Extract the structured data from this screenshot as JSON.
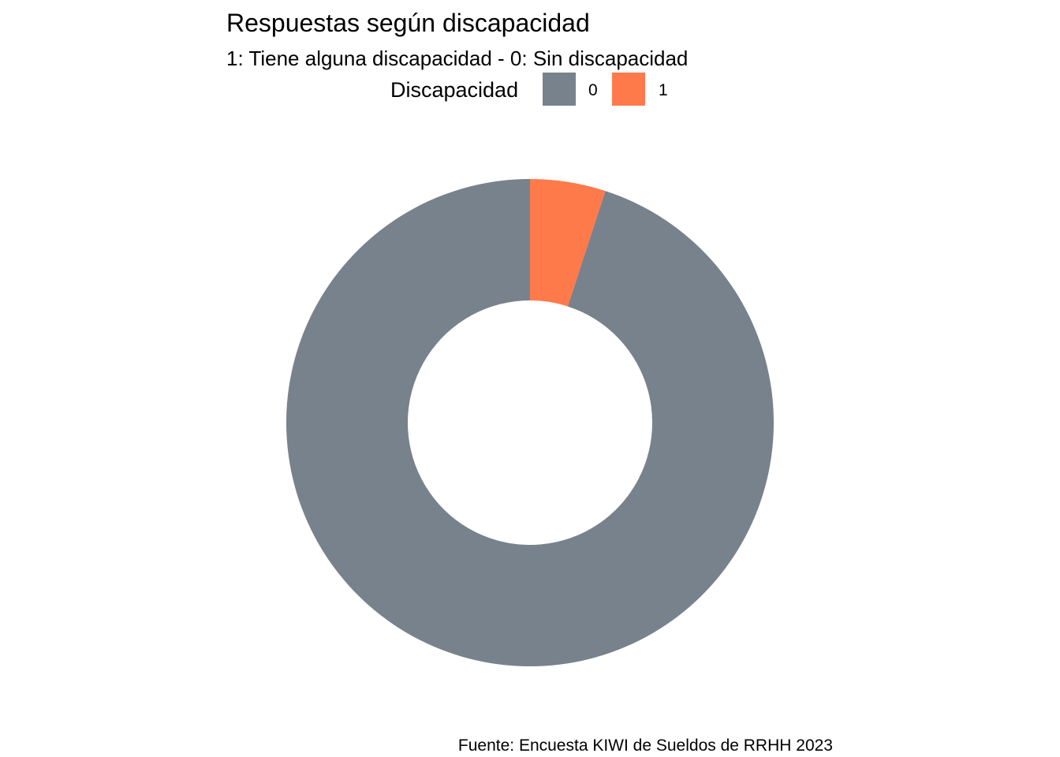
{
  "chart_data": {
    "type": "pie",
    "donut": true,
    "title": "Respuestas según discapacidad",
    "subtitle": "1: Tiene alguna discapacidad - 0: Sin discapacidad",
    "caption": "Fuente: Encuesta KIWI de Sueldos de RRHH 2023",
    "legend": {
      "title": "Discapacidad",
      "placement": "top"
    },
    "categories": [
      "0",
      "1"
    ],
    "values": [
      95,
      5
    ],
    "colors": [
      "#77828C",
      "#FF7A4B"
    ]
  }
}
